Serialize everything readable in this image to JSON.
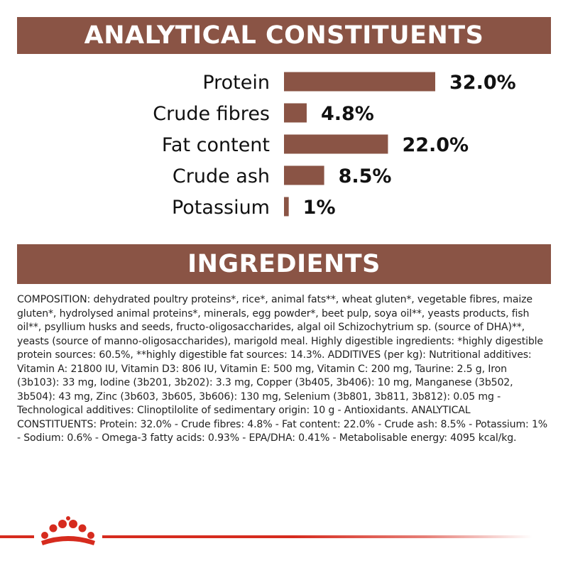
{
  "colors": {
    "band": "#8a5445",
    "bar": "#8a5445",
    "text": "#111111",
    "brand_red": "#d62b1e"
  },
  "analytical": {
    "heading": "ANALYTICAL CONSTITUENTS"
  },
  "ingredients": {
    "heading": "INGREDIENTS",
    "composition": "COMPOSITION: dehydrated poultry proteins*, rice*, animal fats**, wheat gluten*, vegetable fibres, maize gluten*, hydrolysed animal proteins*, minerals, egg powder*, beet pulp, soya oil**, yeasts products, fish oil**, psyllium husks and seeds, fructo-oligosaccharides, algal oil Schizochytrium sp. (source of DHA)**, yeasts (source of manno-oligosaccharides), marigold meal. Highly digestible ingredients: *highly digestible protein sources: 60.5%, **highly digestible fat sources: 14.3%. ADDITIVES (per kg): Nutritional additives: Vitamin A: 21800 IU, Vitamin D3: 806 IU, Vitamin E: 500 mg, Vitamin C: 200 mg, Taurine: 2.5 g, Iron (3b103): 33 mg, Iodine (3b201, 3b202): 3.3 mg, Copper (3b405, 3b406): 10 mg, Manganese (3b502, 3b504): 43 mg, Zinc (3b603, 3b605, 3b606): 130 mg, Selenium (3b801, 3b811, 3b812): 0.05 mg - Technological additives: Clinoptilolite of sedimentary origin: 10 g - Antioxidants. ANALYTICAL CONSTITUENTS: Protein: 32.0% - Crude fibres: 4.8% - Fat content: 22.0% - Crude ash: 8.5% - Potassium: 1% - Sodium: 0.6% - Omega-3 fatty acids: 0.93% - EPA/DHA: 0.41% - Metabolisable energy: 4095 kcal/kg."
  },
  "logo": {
    "icon": "crown-icon"
  },
  "chart_data": {
    "type": "bar",
    "orientation": "horizontal",
    "categories": [
      "Protein",
      "Crude fibres",
      "Fat content",
      "Crude ash",
      "Potassium"
    ],
    "values": [
      32.0,
      4.8,
      22.0,
      8.5,
      1
    ],
    "value_labels": [
      "32.0%",
      "4.8%",
      "22.0%",
      "8.5%",
      "1%"
    ],
    "title": "ANALYTICAL CONSTITUENTS",
    "xlabel": "",
    "ylabel": "",
    "xlim": [
      0,
      32
    ],
    "grid": false,
    "legend": "none"
  }
}
